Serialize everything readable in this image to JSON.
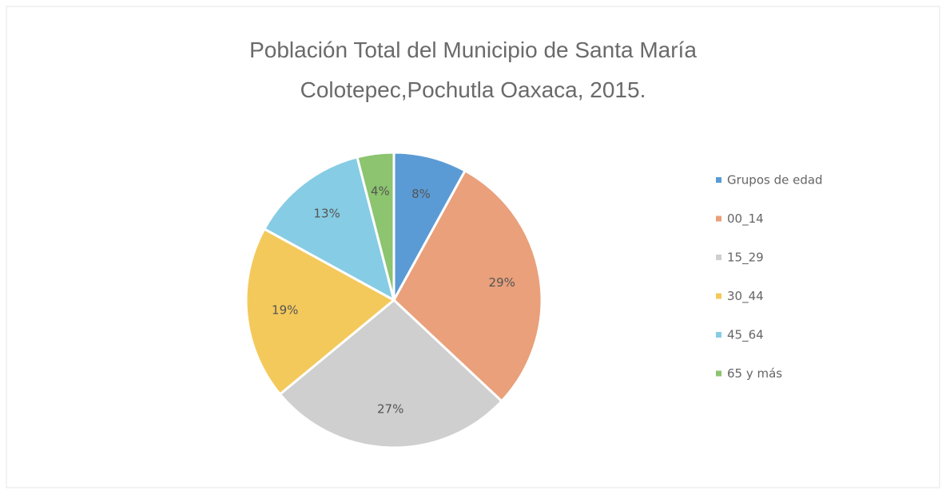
{
  "chart_data": {
    "type": "pie",
    "title": "Población Total del Municipio de Santa María Colotepec,Pochutla Oaxaca, 2015.",
    "categories": [
      "Grupos de edad",
      "00_14",
      "15_29",
      "30_44",
      "45_64",
      "65 y más"
    ],
    "values": [
      8,
      29,
      27,
      19,
      13,
      4
    ],
    "value_labels": [
      "8%",
      "29%",
      "27%",
      "19%",
      "13%",
      "4%"
    ],
    "colors": [
      "#5b9bd5",
      "#e9a07b",
      "#cfcfcf",
      "#f4c95b",
      "#86cce4",
      "#8cc46f"
    ],
    "legend": "right"
  }
}
